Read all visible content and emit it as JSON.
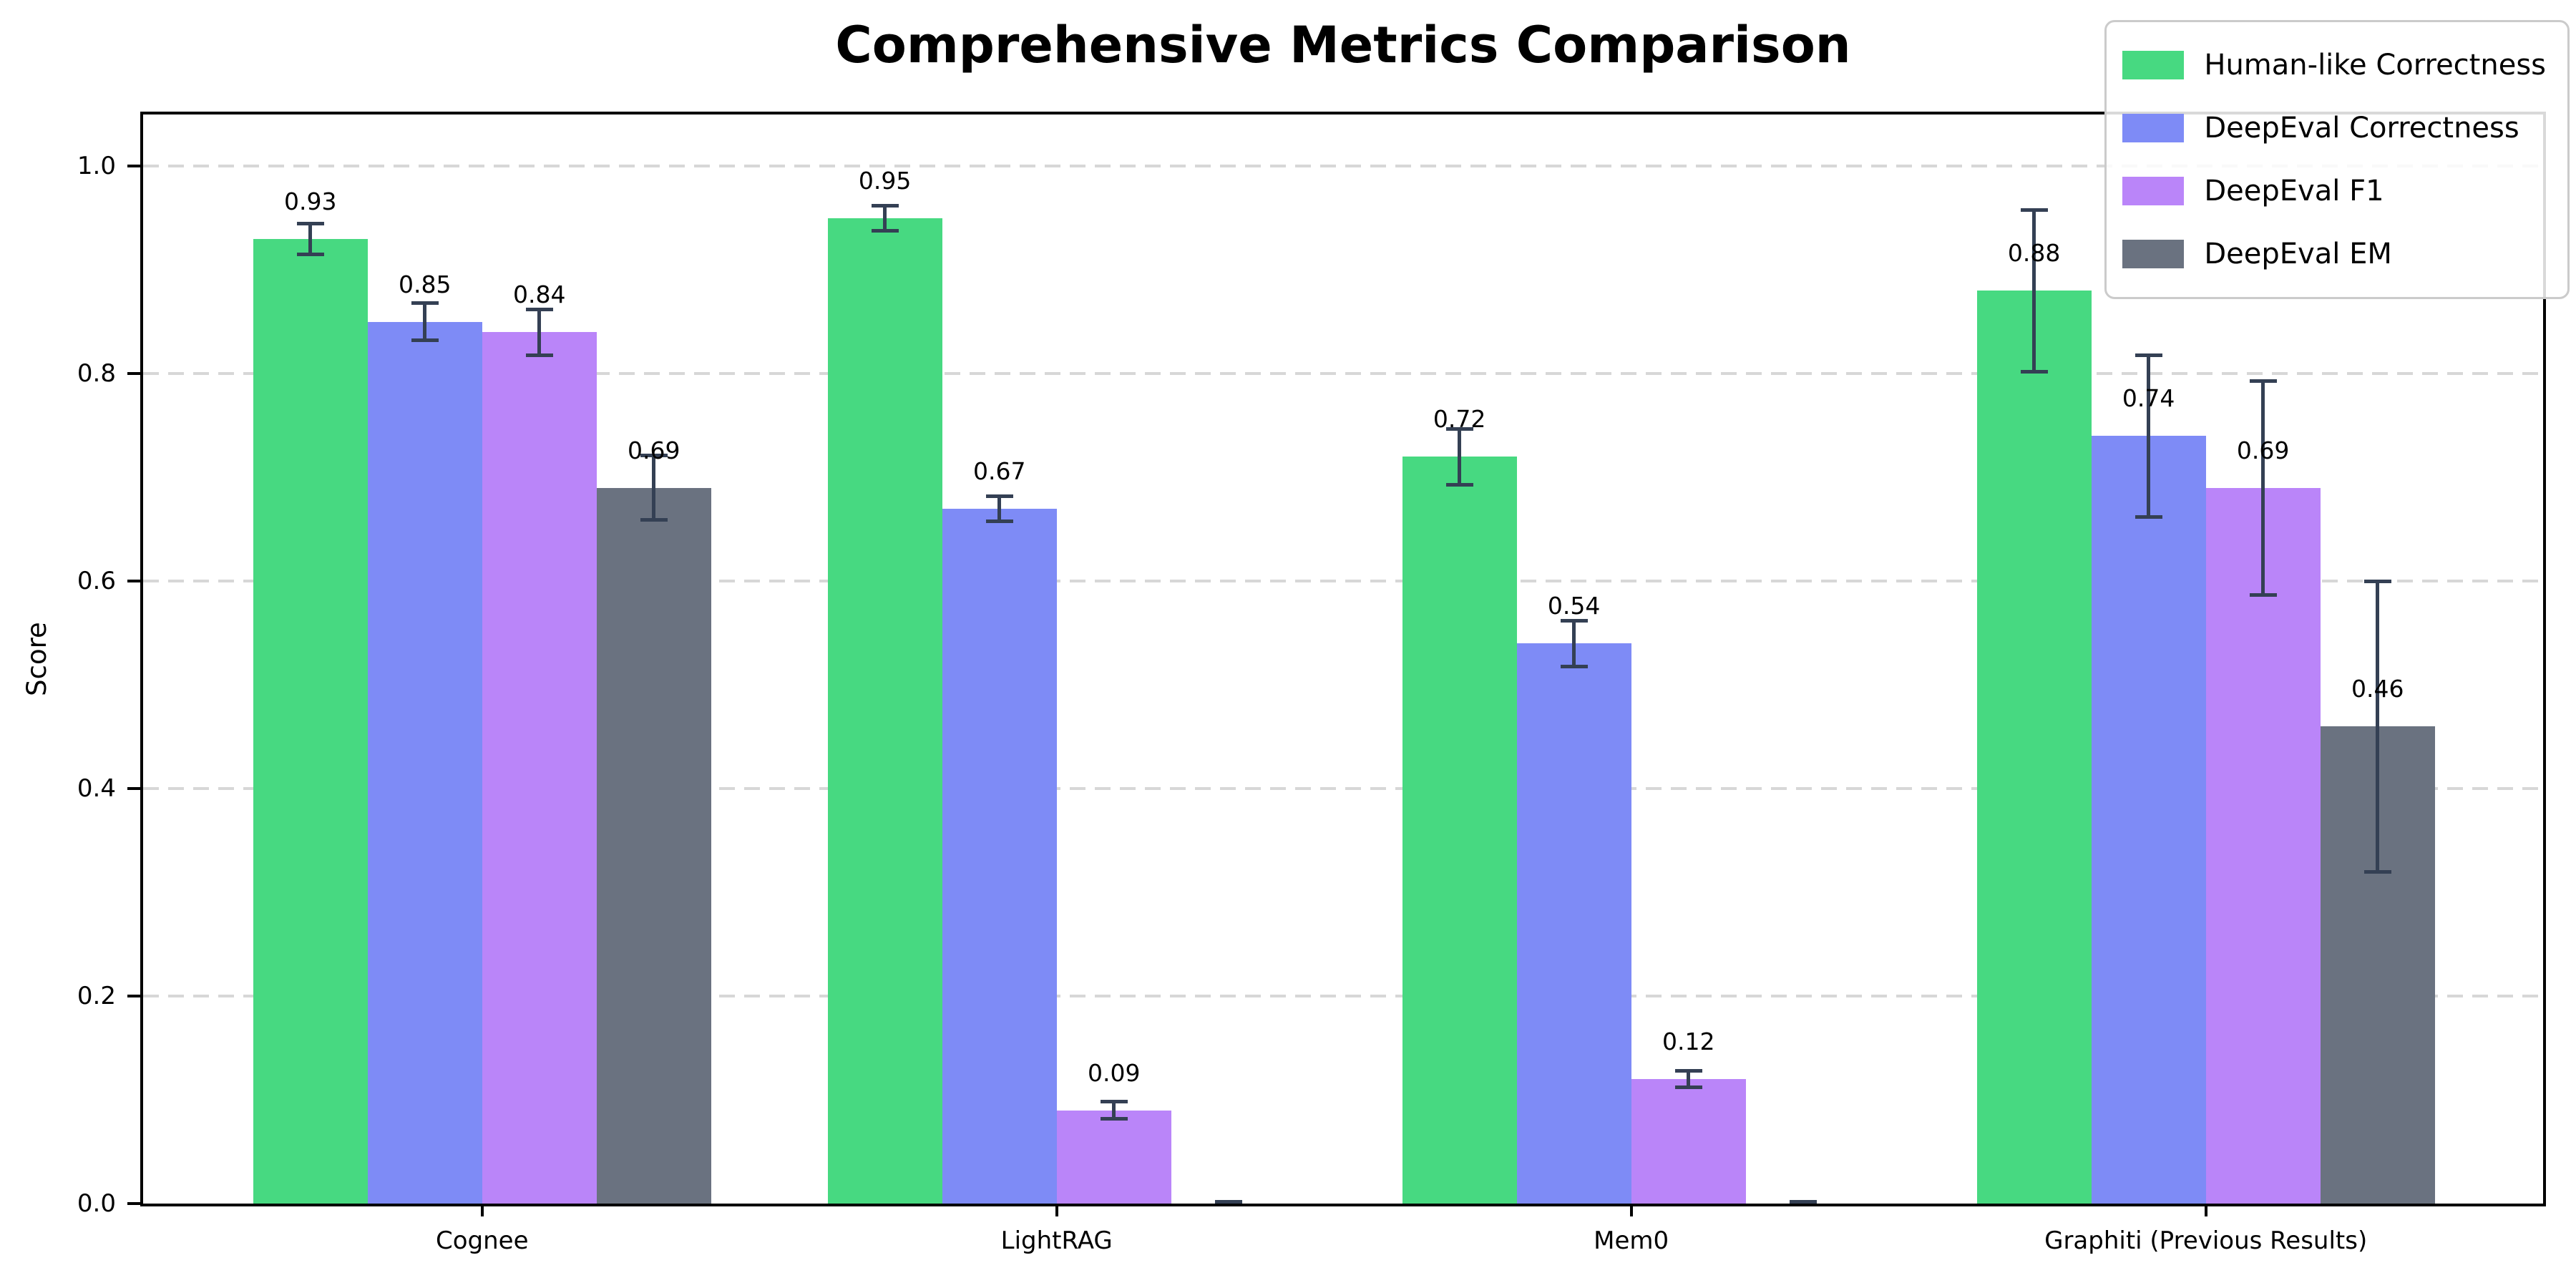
{
  "chart_data": {
    "type": "bar",
    "title": "Comprehensive Metrics Comparison",
    "xlabel": "",
    "ylabel": "Score",
    "categories": [
      "Cognee",
      "LightRAG",
      "Mem0",
      "Graphiti (Previous Results)"
    ],
    "series": [
      {
        "name": "Human-like Correctness",
        "color": "#47d981",
        "values": [
          0.93,
          0.95,
          0.72,
          0.88
        ],
        "errors": [
          0.015,
          0.012,
          0.027,
          0.078
        ],
        "value_labels": [
          "0.93",
          "0.95",
          "0.72",
          "0.88"
        ]
      },
      {
        "name": "DeepEval Correctness",
        "color": "#7e8bf6",
        "values": [
          0.85,
          0.67,
          0.54,
          0.74
        ],
        "errors": [
          0.018,
          0.012,
          0.022,
          0.078
        ],
        "value_labels": [
          "0.85",
          "0.67",
          "0.54",
          "0.74"
        ]
      },
      {
        "name": "DeepEval F1",
        "color": "#ba85f9",
        "values": [
          0.84,
          0.09,
          0.12,
          0.69
        ],
        "errors": [
          0.022,
          0.008,
          0.008,
          0.103
        ],
        "value_labels": [
          "0.84",
          "0.09",
          "0.12",
          "0.69"
        ]
      },
      {
        "name": "DeepEval EM",
        "color": "#6a7280",
        "values": [
          0.69,
          0.0,
          0.0,
          0.46
        ],
        "errors": [
          0.031,
          0.002,
          0.002,
          0.14
        ],
        "value_labels": [
          "0.69",
          null,
          null,
          "0.46"
        ]
      }
    ],
    "ylim": [
      0.0,
      1.05
    ],
    "yticks": [
      "0.0",
      "0.2",
      "0.4",
      "0.6",
      "0.8",
      "1.0"
    ],
    "grid": "dashed-horizontal",
    "grid_color": "#d7d7d7",
    "errorbar_color": "#344054",
    "legend_position": "upper-right",
    "bar_width_data_units": 0.1993
  }
}
